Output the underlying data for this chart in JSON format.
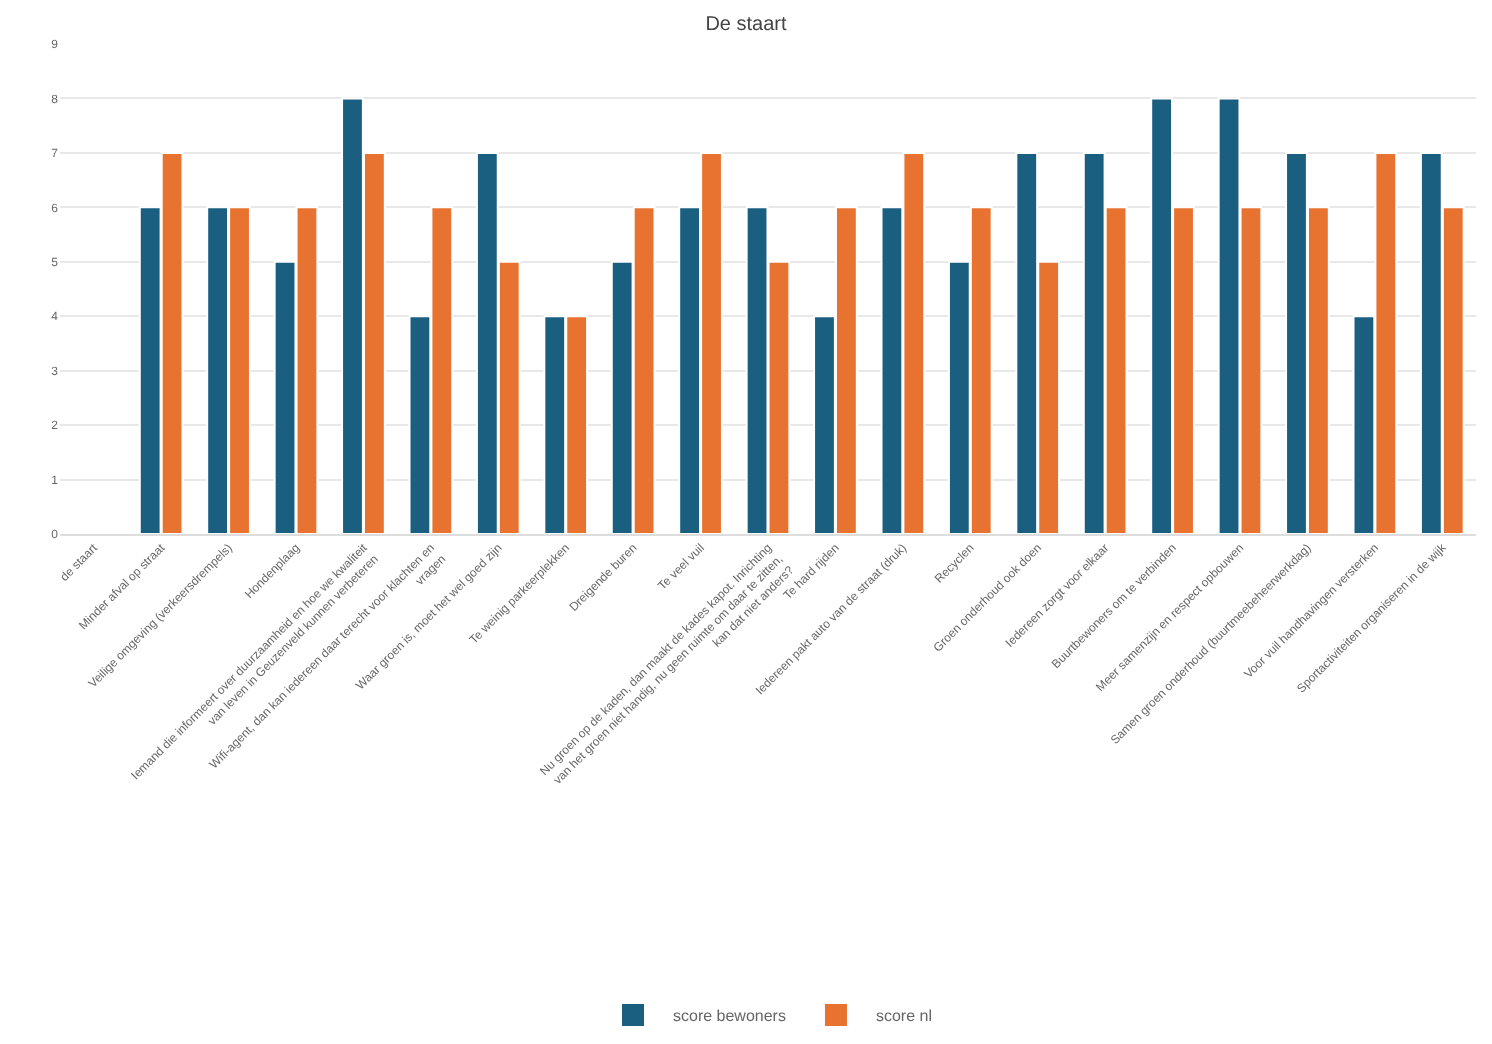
{
  "chart_data": {
    "type": "bar",
    "title": "De staart",
    "categories": [
      "de staart",
      "Minder afval op straat",
      "Veilige omgeving (verkeersdrempels)",
      "Hondenplaag",
      "Iemand die informeert over duurzaamheid en hoe we kwaliteit van leven in Geuzenveld kunnen verbeteren",
      "Wifi-agent, dan kan iedereen daar terecht voor klachten en vragen",
      "Waar groen is, moet het wel goed zijn",
      "Te weinig parkeerplekken",
      "Dreigende buren",
      "Te veel vuil",
      "Nu groen op de kaden, dan maakt de kades kapot. Inrichting van het groen niet handig, nu geen ruimte om daar te zitten, kan dat niet anders?",
      "Te hard rijden",
      "Iedereen pakt auto van de straat (druk)",
      "Recyclen",
      "Groen onderhoud ook doen",
      "Iedereen zorgt voor elkaar",
      "Buurtbewoners om te verbinden",
      "Meer samenzijn en respect opbouwen",
      "Samen groen onderhoud (buurtmeebeheerwerkdag)",
      "Voor vuil handhavingen versterken",
      "Sportactiviteiten organiseren in de wijk"
    ],
    "series": [
      {
        "name": "score bewoners",
        "color": "#1a5e80",
        "values": [
          null,
          6,
          6,
          5,
          8,
          4,
          7,
          4,
          5,
          6,
          6,
          4,
          6,
          5,
          7,
          7,
          8,
          8,
          7,
          4,
          7
        ]
      },
      {
        "name": "score nl",
        "color": "#e87330",
        "values": [
          null,
          7,
          6,
          6,
          7,
          6,
          5,
          4,
          6,
          7,
          5,
          6,
          7,
          6,
          5,
          6,
          6,
          6,
          6,
          7,
          6
        ]
      }
    ],
    "ylim": [
      0,
      9
    ],
    "yticks": [
      0,
      1,
      2,
      3,
      4,
      5,
      6,
      7,
      8,
      9
    ],
    "grid": "y",
    "legend": "bottom"
  }
}
